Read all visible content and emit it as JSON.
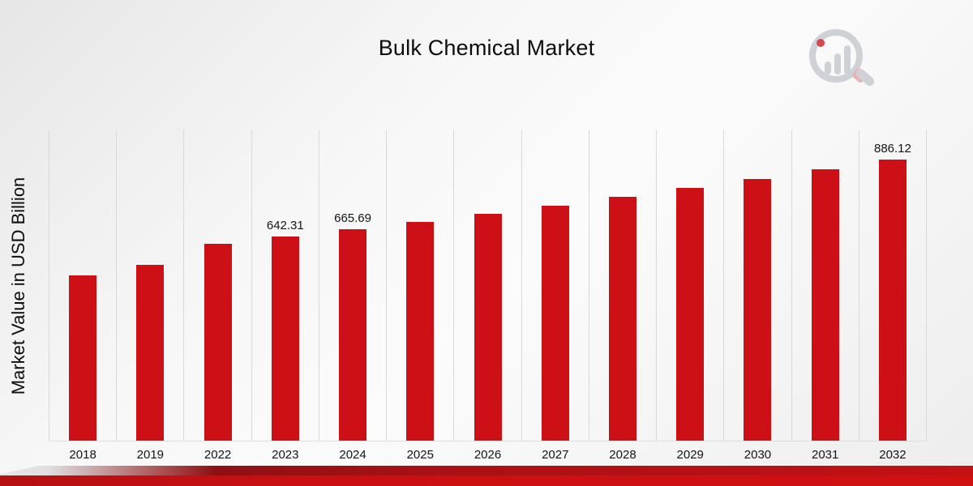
{
  "title": "Bulk Chemical Market",
  "ylabel": "Market Value in USD Billion",
  "colors": {
    "bar": "#cc1016",
    "band": "#c90f12",
    "gridline": "#d8d8d8"
  },
  "logo": {
    "description": "magnifying-glass-over-bar-chart watermark"
  },
  "chart_data": {
    "type": "bar",
    "title": "Bulk Chemical Market",
    "xlabel": "",
    "ylabel": "Market Value in USD Billion",
    "ylim": [
      0,
      980
    ],
    "grid": "vertical-column-separators",
    "legend": "none",
    "categories": [
      "2018",
      "2019",
      "2022",
      "2023",
      "2024",
      "2025",
      "2026",
      "2027",
      "2028",
      "2029",
      "2030",
      "2031",
      "2032"
    ],
    "values": [
      521,
      554,
      620,
      642.31,
      665.69,
      690,
      715,
      741,
      768,
      796,
      825,
      855,
      886.12
    ],
    "points": [
      {
        "year": "2018",
        "value": 521
      },
      {
        "year": "2019",
        "value": 554
      },
      {
        "year": "2022",
        "value": 620
      },
      {
        "year": "2023",
        "value": 642.31,
        "label": "642.31"
      },
      {
        "year": "2024",
        "value": 665.69,
        "label": "665.69"
      },
      {
        "year": "2025",
        "value": 690
      },
      {
        "year": "2026",
        "value": 715
      },
      {
        "year": "2027",
        "value": 741
      },
      {
        "year": "2028",
        "value": 768
      },
      {
        "year": "2029",
        "value": 796
      },
      {
        "year": "2030",
        "value": 825
      },
      {
        "year": "2031",
        "value": 855
      },
      {
        "year": "2032",
        "value": 886.12,
        "label": "886.12"
      }
    ],
    "annotated_values": [
      "642.31",
      "665.69",
      "886.12"
    ]
  }
}
